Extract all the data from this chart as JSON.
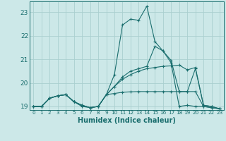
{
  "xlabel": "Humidex (Indice chaleur)",
  "bg_color": "#cce8e8",
  "line_color": "#1a6e6e",
  "grid_color": "#aacfcf",
  "xlim": [
    -0.5,
    23.5
  ],
  "ylim": [
    18.85,
    23.45
  ],
  "yticks": [
    19,
    20,
    21,
    22,
    23
  ],
  "xticks": [
    0,
    1,
    2,
    3,
    4,
    5,
    6,
    7,
    8,
    9,
    10,
    11,
    12,
    13,
    14,
    15,
    16,
    17,
    18,
    19,
    20,
    21,
    22,
    23
  ],
  "lines": [
    [
      19.0,
      19.0,
      19.35,
      19.45,
      19.5,
      19.2,
      19.0,
      18.95,
      19.0,
      19.5,
      20.35,
      22.45,
      22.7,
      22.65,
      23.25,
      21.75,
      21.35,
      20.85,
      19.0,
      19.05,
      19.0,
      19.0,
      18.95,
      18.9
    ],
    [
      19.0,
      19.0,
      19.35,
      19.45,
      19.5,
      19.2,
      19.05,
      18.95,
      19.0,
      19.5,
      19.55,
      19.6,
      19.62,
      19.63,
      19.63,
      19.63,
      19.63,
      19.63,
      19.63,
      19.63,
      19.63,
      19.0,
      18.95,
      18.9
    ],
    [
      19.0,
      19.0,
      19.35,
      19.45,
      19.5,
      19.2,
      19.05,
      18.95,
      19.0,
      19.5,
      19.85,
      20.15,
      20.35,
      20.5,
      20.6,
      20.65,
      20.7,
      20.72,
      20.75,
      20.55,
      20.65,
      19.05,
      19.0,
      18.9
    ],
    [
      19.0,
      19.0,
      19.35,
      19.45,
      19.5,
      19.2,
      19.05,
      18.95,
      19.0,
      19.5,
      19.85,
      20.25,
      20.5,
      20.6,
      20.7,
      21.55,
      21.35,
      20.95,
      19.63,
      19.63,
      20.6,
      19.05,
      19.0,
      18.9
    ]
  ]
}
